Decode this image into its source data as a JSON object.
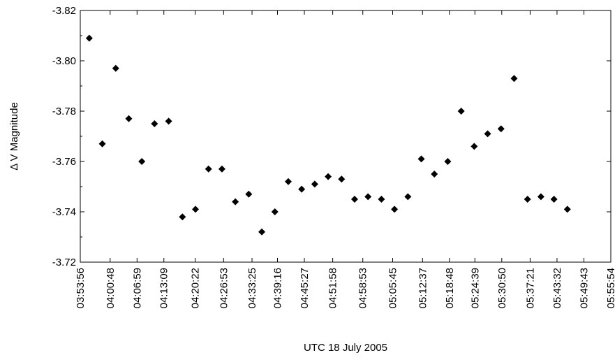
{
  "chart_data": {
    "type": "scatter",
    "title": "",
    "xlabel": "UTC 18 July 2005",
    "ylabel": "Δ V Magnitude",
    "ylim": [
      -3.72,
      -3.82
    ],
    "y_axis_inverted": true,
    "y_ticks": [
      "-3.82",
      "-3.80",
      "-3.78",
      "-3.76",
      "-3.74",
      "-3.72"
    ],
    "x_tick_labels": [
      "03:53:56",
      "04:00:48",
      "04:06:59",
      "04:13:09",
      "04:20:22",
      "04:26:53",
      "04:33:25",
      "04:39:16",
      "04:45:27",
      "04:51:58",
      "04:58:53",
      "05:05:45",
      "05:12:37",
      "05:18:48",
      "05:24:39",
      "05:30:50",
      "05:37:21",
      "05:43:32",
      "05:49:43",
      "05:55:54"
    ],
    "grid": false,
    "marker": "diamond",
    "marker_color": "#000000",
    "series": [
      {
        "x": [
          "03:56:00",
          "03:59:00",
          "04:02:05",
          "04:05:05",
          "04:08:05",
          "04:11:00",
          "04:14:15",
          "04:17:25",
          "04:20:25",
          "04:23:25",
          "04:26:30",
          "04:29:35",
          "04:32:40",
          "04:35:40",
          "04:38:40",
          "04:41:45",
          "04:44:50",
          "04:47:50",
          "04:50:55",
          "04:54:00",
          "04:57:00",
          "05:00:05",
          "05:03:10",
          "05:06:10",
          "05:09:15",
          "05:12:20",
          "05:15:20",
          "05:18:25",
          "05:21:30",
          "05:24:30",
          "05:27:35",
          "05:30:40",
          "05:33:40",
          "05:36:45",
          "05:39:50",
          "05:42:50",
          "05:45:55"
        ],
        "y": [
          -3.809,
          -3.767,
          -3.797,
          -3.777,
          -3.76,
          -3.775,
          -3.776,
          -3.738,
          -3.741,
          -3.757,
          -3.757,
          -3.744,
          -3.747,
          -3.732,
          -3.74,
          -3.752,
          -3.749,
          -3.751,
          -3.754,
          -3.753,
          -3.745,
          -3.746,
          -3.745,
          -3.741,
          -3.746,
          -3.761,
          -3.755,
          -3.76,
          -3.78,
          -3.766,
          -3.771,
          -3.773,
          -3.793,
          -3.745,
          -3.746,
          -3.745,
          -3.741
        ]
      }
    ]
  }
}
